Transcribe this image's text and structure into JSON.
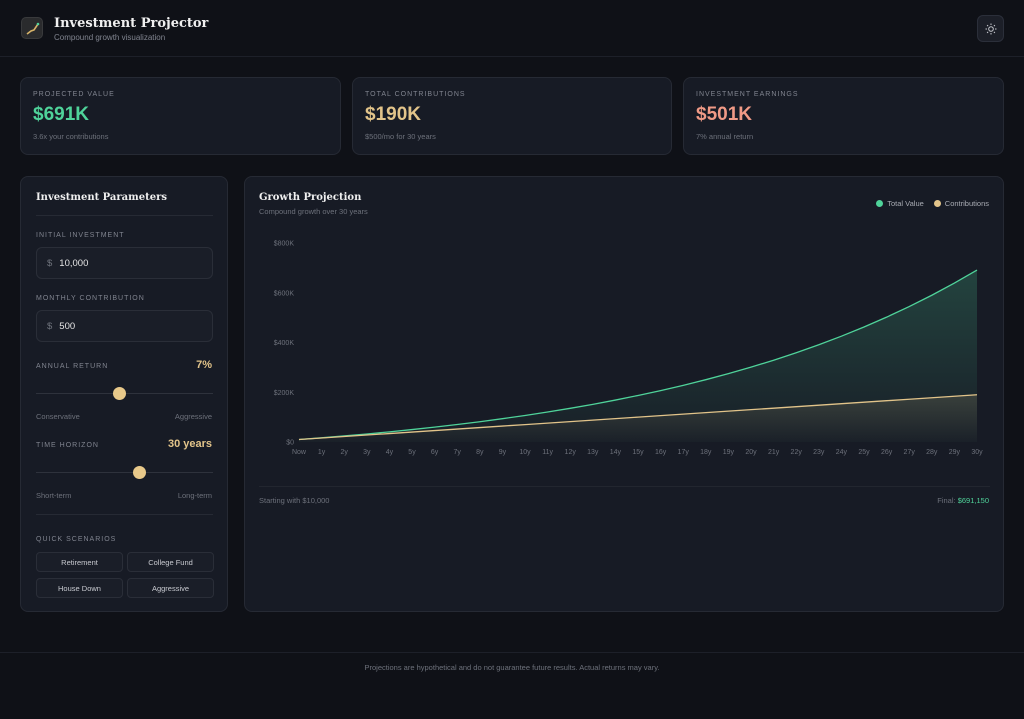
{
  "header": {
    "title": "Investment Projector",
    "subtitle": "Compound growth visualization",
    "logo_icon": "chart-trend-icon",
    "theme_icon": "sun-icon"
  },
  "cards": [
    {
      "label": "PROJECTED VALUE",
      "value": "$691K",
      "sub": "3.6x your contributions",
      "color": "#4fd39a"
    },
    {
      "label": "TOTAL CONTRIBUTIONS",
      "value": "$190K",
      "sub": "$500/mo for 30 years",
      "color": "#e2c48a"
    },
    {
      "label": "INVESTMENT EARNINGS",
      "value": "$501K",
      "sub": "7% annual return",
      "color": "#f09a86"
    }
  ],
  "params": {
    "title": "Investment Parameters",
    "initial_label": "INITIAL INVESTMENT",
    "currency": "$",
    "initial_value": "10,000",
    "monthly_label": "MONTHLY CONTRIBUTION",
    "monthly_value": "500",
    "return_label": "ANNUAL RETURN",
    "return_value": "7%",
    "return_fraction": 0.47,
    "return_min": "Conservative",
    "return_max": "Aggressive",
    "horizon_label": "TIME HORIZON",
    "horizon_value": "30 years",
    "horizon_fraction": 0.58,
    "horizon_min": "Short-term",
    "horizon_max": "Long-term",
    "scenarios_label": "QUICK SCENARIOS",
    "scenarios": [
      "Retirement",
      "College Fund",
      "House Down",
      "Aggressive"
    ]
  },
  "chart_footer": {
    "start": "Starting with $10,000",
    "final_label": "Final: ",
    "final_value": "$691,150"
  },
  "footer": "Projections are hypothetical and do not guarantee future results. Actual returns may vary.",
  "chart_data": {
    "type": "area",
    "title": "Growth Projection",
    "subtitle": "Compound growth over 30 years",
    "categories": [
      "Now",
      "1y",
      "2y",
      "3y",
      "4y",
      "5y",
      "6y",
      "7y",
      "8y",
      "9y",
      "10y",
      "11y",
      "12y",
      "13y",
      "14y",
      "15y",
      "16y",
      "17y",
      "18y",
      "19y",
      "20y",
      "21y",
      "22y",
      "23y",
      "24y",
      "25y",
      "26y",
      "27y",
      "28y",
      "29y",
      "30y"
    ],
    "yticks": [
      0,
      200000,
      400000,
      600000,
      800000
    ],
    "ytick_labels": [
      "$0",
      "$200K",
      "$400K",
      "$600K",
      "$800K"
    ],
    "ylim": [
      0,
      800000
    ],
    "legend_position": "top-right",
    "series": [
      {
        "name": "Total Value",
        "color": "#4fd39a",
        "values": [
          10000,
          16919,
          24338,
          32294,
          40824,
          49973,
          59782,
          70299,
          81577,
          93670,
          106639,
          120544,
          135454,
          151443,
          168587,
          186971,
          206683,
          227821,
          250486,
          274790,
          300850,
          328795,
          358760,
          390891,
          425345,
          462290,
          501904,
          544384,
          589933,
          638775,
          691150
        ]
      },
      {
        "name": "Contributions",
        "color": "#e2c48a",
        "values": [
          10000,
          16000,
          22000,
          28000,
          34000,
          40000,
          46000,
          52000,
          58000,
          64000,
          70000,
          76000,
          82000,
          88000,
          94000,
          100000,
          106000,
          112000,
          118000,
          124000,
          130000,
          136000,
          142000,
          148000,
          154000,
          160000,
          166000,
          172000,
          178000,
          184000,
          190000
        ]
      }
    ]
  }
}
